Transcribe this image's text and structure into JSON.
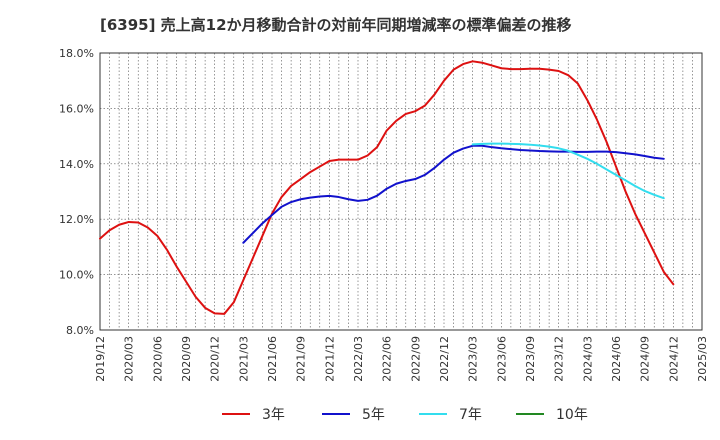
{
  "chart_data": {
    "type": "line",
    "title": "[6395]  売上高12か月移動合計の対前年同期増減率の標準偏差の推移",
    "xlabel": "",
    "ylabel": "",
    "ylim": [
      8.0,
      18.0
    ],
    "yticks": [
      8.0,
      10.0,
      12.0,
      14.0,
      16.0,
      18.0
    ],
    "ytick_labels": [
      "8.0%",
      "10.0%",
      "12.0%",
      "14.0%",
      "16.0%",
      "18.0%"
    ],
    "x_start": "2019/12",
    "x_end": "2025/03",
    "xtick_labels": [
      "2019/12",
      "2020/03",
      "2020/06",
      "2020/09",
      "2020/12",
      "2021/03",
      "2021/06",
      "2021/09",
      "2021/12",
      "2022/03",
      "2022/06",
      "2022/09",
      "2022/12",
      "2023/03",
      "2023/06",
      "2023/09",
      "2023/12",
      "2024/03",
      "2024/06",
      "2024/09",
      "2024/12",
      "2025/03"
    ],
    "grid": true,
    "legend_position": "bottom",
    "series": [
      {
        "name": "3年",
        "color": "#dd1111",
        "start": "2019/12",
        "values": [
          11.3,
          11.6,
          11.8,
          11.9,
          11.88,
          11.7,
          11.4,
          10.9,
          10.3,
          9.75,
          9.2,
          8.8,
          8.6,
          8.58,
          9.0,
          9.8,
          10.6,
          11.4,
          12.2,
          12.8,
          13.2,
          13.45,
          13.7,
          13.9,
          14.1,
          14.15,
          14.15,
          14.15,
          14.3,
          14.6,
          15.2,
          15.55,
          15.8,
          15.9,
          16.1,
          16.5,
          17.0,
          17.4,
          17.6,
          17.7,
          17.65,
          17.55,
          17.45,
          17.42,
          17.42,
          17.43,
          17.43,
          17.4,
          17.35,
          17.2,
          16.9,
          16.3,
          15.6,
          14.8,
          13.9,
          13.0,
          12.2,
          11.5,
          10.8,
          10.1,
          9.65
        ]
      },
      {
        "name": "5年",
        "color": "#1111cc",
        "start": "2021/03",
        "values": [
          11.15,
          11.5,
          11.85,
          12.15,
          12.45,
          12.62,
          12.72,
          12.78,
          12.82,
          12.84,
          12.8,
          12.72,
          12.66,
          12.7,
          12.85,
          13.1,
          13.28,
          13.38,
          13.45,
          13.6,
          13.85,
          14.15,
          14.4,
          14.55,
          14.65,
          14.65,
          14.6,
          14.56,
          14.53,
          14.5,
          14.48,
          14.46,
          14.45,
          14.44,
          14.44,
          14.43,
          14.43,
          14.44,
          14.44,
          14.42,
          14.38,
          14.34,
          14.28,
          14.22,
          14.18
        ]
      },
      {
        "name": "7年",
        "color": "#33ddee",
        "start": "2023/03",
        "values": [
          14.7,
          14.72,
          14.73,
          14.73,
          14.72,
          14.71,
          14.69,
          14.66,
          14.62,
          14.56,
          14.47,
          14.33,
          14.18,
          14.0,
          13.8,
          13.6,
          13.4,
          13.2,
          13.02,
          12.88,
          12.76
        ]
      },
      {
        "name": "10年",
        "color": "#228822",
        "start": "2024/12",
        "values": []
      }
    ]
  }
}
